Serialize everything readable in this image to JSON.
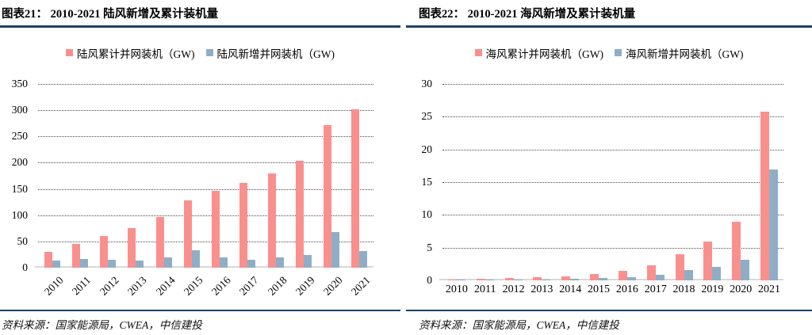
{
  "figures": [
    {
      "title": "图表21：  2010-2021 陆风新增及累计装机量",
      "source": "资料来源：国家能源局，CWEA，中信建投"
    },
    {
      "title": "图表22：  2010-2021 海风新增及累计装机量",
      "source": "资料来源：国家能源局，CWEA，中信建投"
    }
  ],
  "colors": {
    "cumulative_bar": "#F9908E",
    "new_bar": "#8FAEC6",
    "rule_line": "#1B4265",
    "gridline": "#4D4D4D",
    "axis_line": "#D9D9D9"
  },
  "chart_data": [
    {
      "type": "bar",
      "title": "2010-2021 陆风新增及累计装机量",
      "categories": [
        "2010",
        "2011",
        "2012",
        "2013",
        "2014",
        "2015",
        "2016",
        "2017",
        "2018",
        "2019",
        "2020",
        "2021"
      ],
      "series": [
        {
          "name": "陆风累计并网装机（GW)",
          "color": "#F9908E",
          "values": [
            30,
            46,
            61,
            76,
            96,
            128,
            147,
            161,
            180,
            204,
            271,
            302
          ]
        },
        {
          "name": "陆风新增并网装机（GW)",
          "color": "#8FAEC6",
          "values": [
            14,
            16,
            15,
            14,
            20,
            33,
            19,
            15,
            20,
            24,
            68,
            31
          ]
        }
      ],
      "ylim": [
        0,
        350
      ],
      "yticks": [
        0,
        50,
        100,
        150,
        200,
        250,
        300,
        350
      ],
      "xlabel": "",
      "ylabel": "",
      "legend_position": "top",
      "grid": true,
      "xlabel_rotation": -45
    },
    {
      "type": "bar",
      "title": "2010-2021 海风新增及累计装机量",
      "categories": [
        "2010",
        "2011",
        "2012",
        "2013",
        "2014",
        "2015",
        "2016",
        "2017",
        "2018",
        "2019",
        "2020",
        "2021"
      ],
      "series": [
        {
          "name": "海风累计并网装机（GW)",
          "color": "#F9908E",
          "values": [
            0.15,
            0.25,
            0.4,
            0.45,
            0.65,
            1.0,
            1.5,
            2.3,
            4.0,
            5.9,
            9.0,
            25.8
          ]
        },
        {
          "name": "海风新增并网装机（GW)",
          "color": "#8FAEC6",
          "values": [
            0.05,
            0.1,
            0.15,
            0.05,
            0.2,
            0.35,
            0.5,
            0.9,
            1.6,
            2.0,
            3.1,
            16.9
          ]
        }
      ],
      "ylim": [
        0,
        30
      ],
      "yticks": [
        0,
        5,
        10,
        15,
        20,
        25,
        30
      ],
      "xlabel": "",
      "ylabel": "",
      "legend_position": "top",
      "grid": true,
      "xlabel_rotation": 0
    }
  ]
}
